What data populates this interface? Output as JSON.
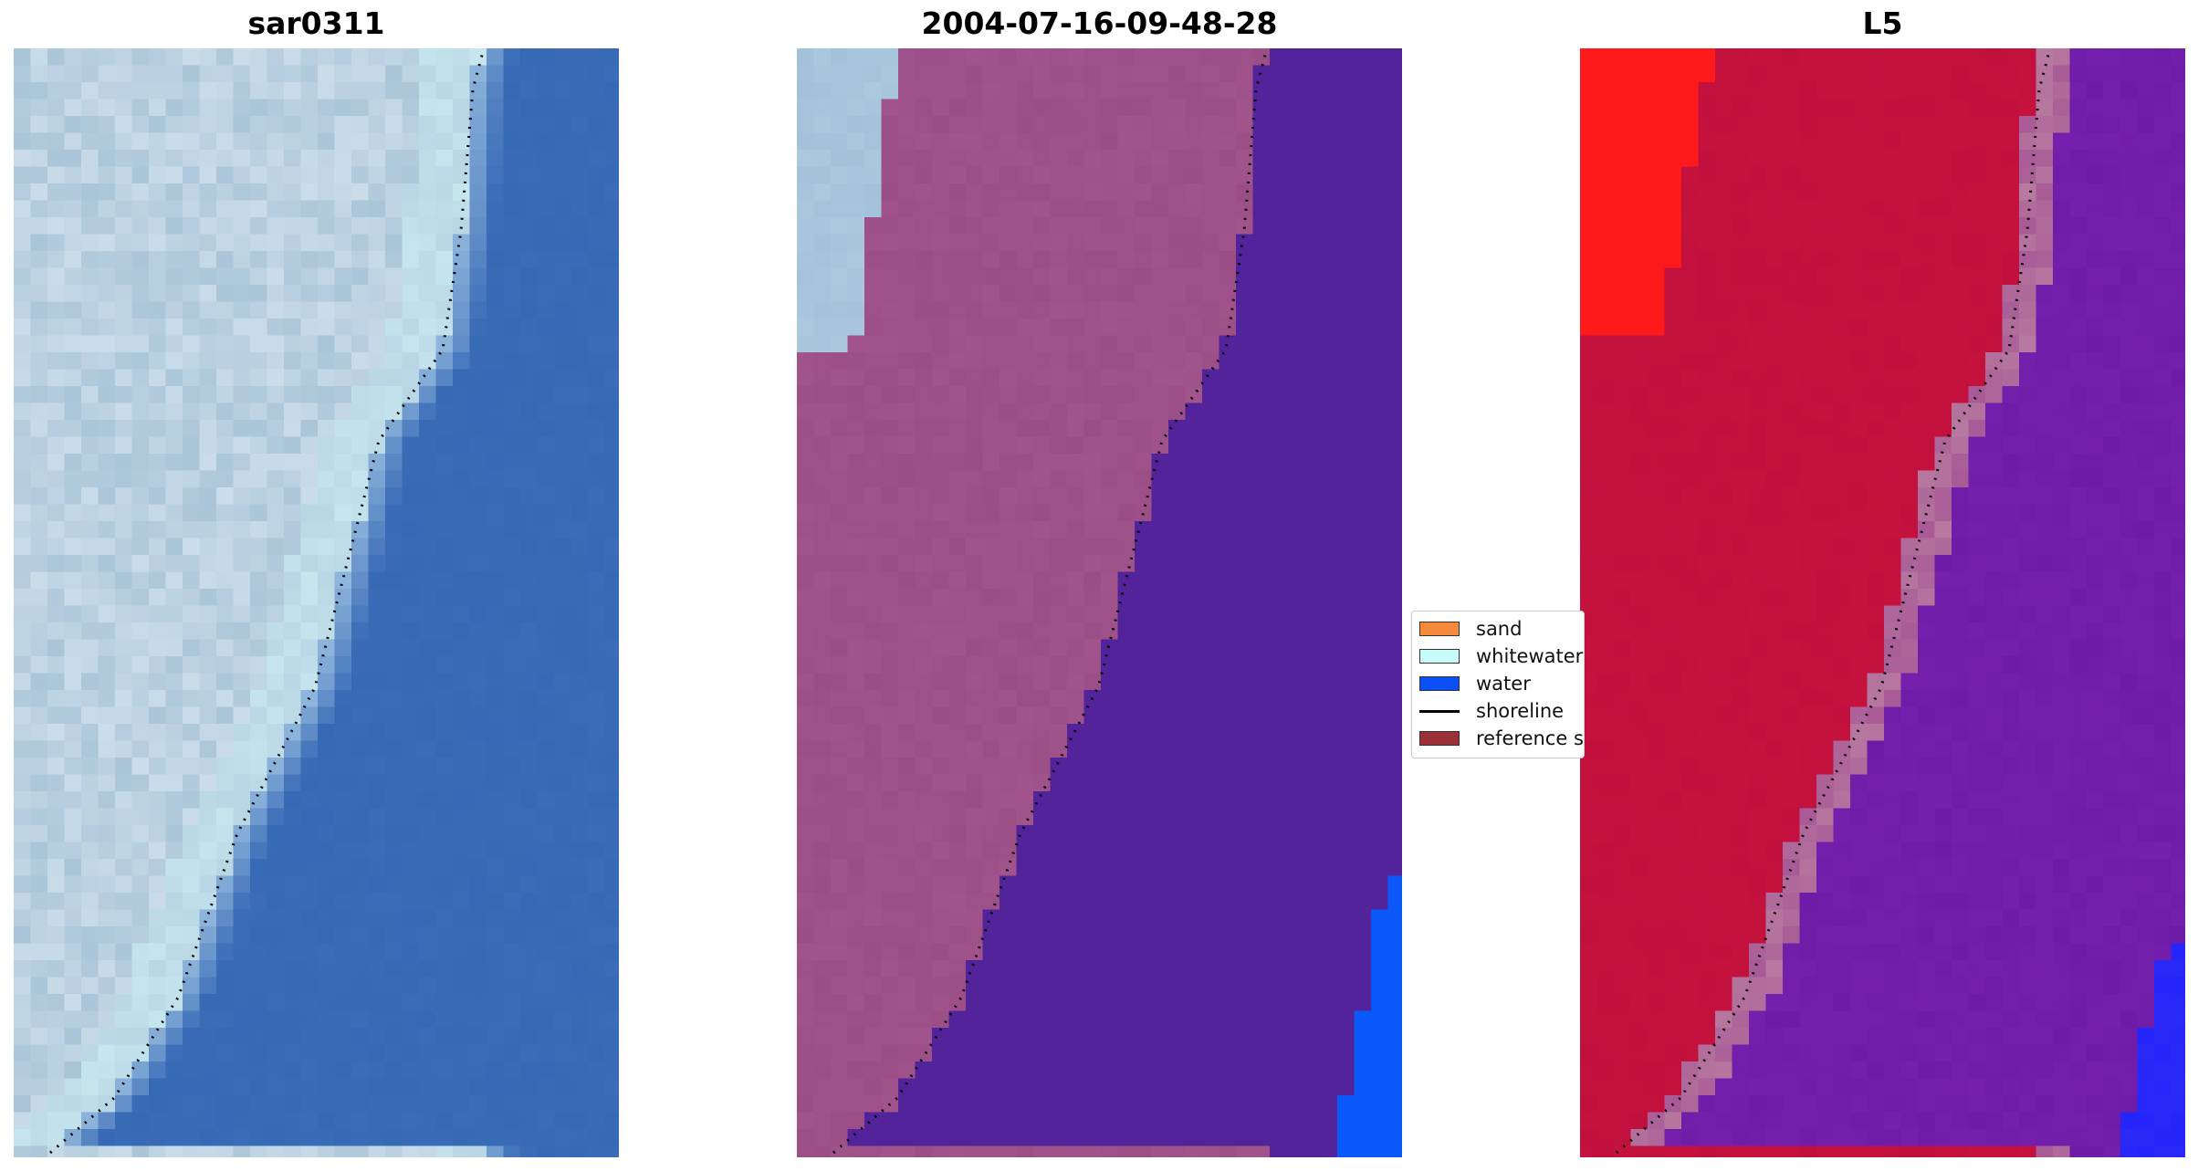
{
  "panels": [
    {
      "id": "left",
      "title": "sar0311"
    },
    {
      "id": "middle",
      "title": "2004-07-16-09-48-28"
    },
    {
      "id": "right",
      "title": "L5"
    }
  ],
  "legend": {
    "items": [
      {
        "label": "sand",
        "color": "#f58a3c",
        "kind": "patch",
        "icon": "sand-swatch-icon"
      },
      {
        "label": "whitewater",
        "color": "#c9fbfb",
        "kind": "patch",
        "icon": "whitewater-swatch-icon"
      },
      {
        "label": "water",
        "color": "#0a50f5",
        "kind": "patch",
        "icon": "water-swatch-icon"
      },
      {
        "label": "shoreline",
        "color": "#000000",
        "kind": "line",
        "icon": "shoreline-line-icon"
      },
      {
        "label": "reference shoreline",
        "color": "#9b3038",
        "kind": "patch",
        "icon": "reference-shoreline-swatch-icon"
      }
    ]
  },
  "colors": {
    "rgb_sand": "#aac5d8",
    "rgb_water": "#3a6cb7",
    "rgb_foam": "#e6f0f8",
    "class_sand": "#9b4e86",
    "class_ww": "#a3c2d8",
    "class_water": "#52239a",
    "class_water_blue": "#0a58f8",
    "ndvi_land": "#c2103e",
    "ndvi_red": "#fe1a1a",
    "ndvi_water": "#6e1ca8",
    "ndvi_blue": "#2a2af6",
    "shoreline": "#000000"
  }
}
